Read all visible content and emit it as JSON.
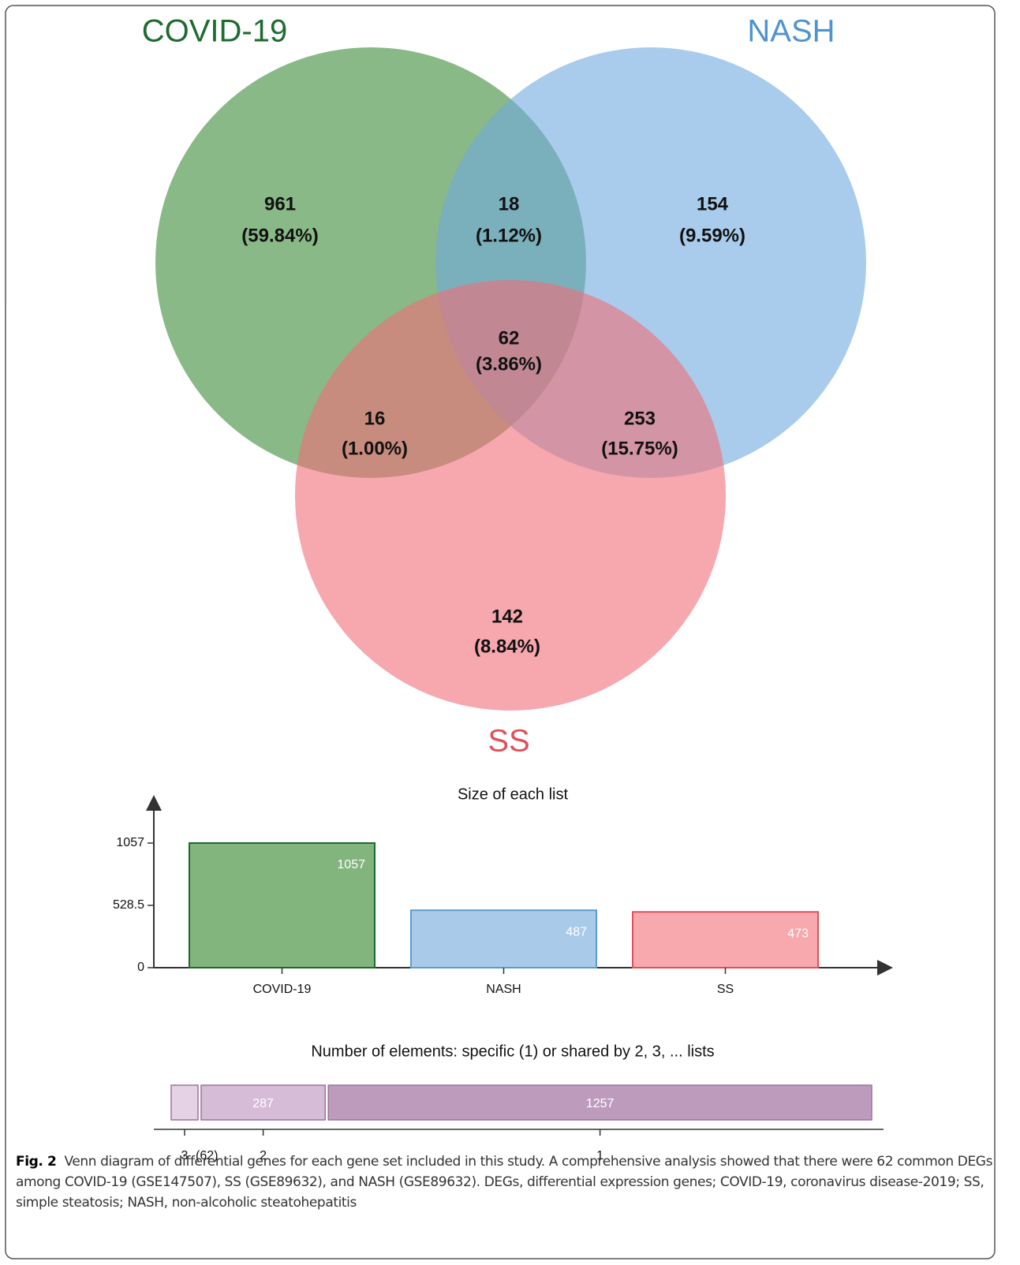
{
  "chart_data": [
    {
      "type": "venn",
      "sets": [
        {
          "name": "COVID-19",
          "color": "#3a8a35",
          "label_color": "#1e6b30"
        },
        {
          "name": "NASH",
          "color": "#6faadf",
          "label_color": "#4e94cf"
        },
        {
          "name": "SS",
          "color": "#f06e78",
          "label_color": "#e0505a"
        }
      ],
      "regions": [
        {
          "count": 961,
          "percent": {
            "value": 59.84,
            "label": "(59.84%)"
          }
        },
        {
          "count": 18,
          "percent": {
            "value": 1.12,
            "label": "(1.12%)"
          }
        },
        {
          "count": 154,
          "percent": {
            "value": 9.59,
            "label": "(9.59%)"
          }
        },
        {
          "count": 62,
          "percent": {
            "value": 3.86,
            "label": "(3.86%)"
          }
        },
        {
          "count": 16,
          "percent": {
            "value": 1.0,
            "label": "(1.00%)"
          }
        },
        {
          "count": 253,
          "percent": {
            "value": 15.75,
            "label": "(15.75%)"
          }
        },
        {
          "count": 142,
          "percent": {
            "value": 8.84,
            "label": "(8.84%)"
          }
        }
      ]
    },
    {
      "type": "bar",
      "title": "Size of each list",
      "categories": [
        "COVID-19",
        "NASH",
        "SS"
      ],
      "values": [
        1057,
        487,
        473
      ],
      "colors": [
        "#82b47e",
        "#a9cbe9",
        "#f7a9ae"
      ],
      "stroke_colors": [
        "#1d6b2a",
        "#5b9bd0",
        "#e0505a"
      ],
      "ylim": [
        0,
        1057
      ],
      "yticks": [
        0,
        528.5,
        1057
      ]
    },
    {
      "type": "stacked_hbar",
      "title": "Number of elements: specific (1) or shared by 2, 3, ... lists",
      "categories": [
        "3",
        "2",
        "1"
      ],
      "values": [
        62,
        287,
        1257
      ],
      "value_labels": [
        "(62)",
        "287",
        "1257"
      ],
      "colors": [
        "#e5d3e5",
        "#d6bcd6",
        "#bd9bbd"
      ],
      "stroke_color": "#9c739c"
    }
  ],
  "caption": {
    "label": "Fig. 2",
    "text": "Venn diagram of differential genes for each gene set included in this study. A comprehensive analysis showed that there were 62 common DEGs among COVID-19 (GSE147507), SS (GSE89632), and NASH (GSE89632). DEGs, differential expression genes; COVID-19, coronavirus disease-2019; SS, simple steatosis; NASH, non-alcoholic steatohepatitis"
  }
}
